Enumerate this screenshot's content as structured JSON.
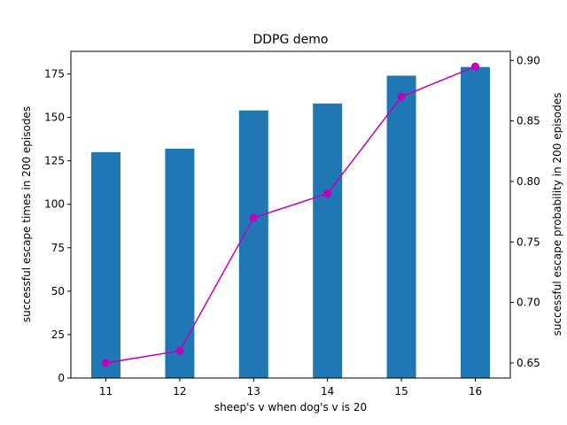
{
  "chart_data": {
    "type": "bar",
    "title": "DDPG demo",
    "xlabel": "sheep's v when dog's v is 20",
    "ylabel": "successful escape times in 200 episodes",
    "y2label": "successful escape probability in 200 episodes",
    "categories": [
      "11",
      "12",
      "13",
      "14",
      "15",
      "16"
    ],
    "series": [
      {
        "type": "bar",
        "axis": "left",
        "values": [
          130,
          132,
          154,
          158,
          174,
          179
        ],
        "color": "#1f77b4"
      },
      {
        "type": "line",
        "axis": "right",
        "values": [
          0.65,
          0.66,
          0.77,
          0.79,
          0.87,
          0.895
        ],
        "color": "#bf00bf",
        "marker": "circle"
      }
    ],
    "ylim": [
      0,
      188
    ],
    "y2lim": [
      0.6375,
      0.9075
    ],
    "yticks": [
      "0",
      "25",
      "50",
      "75",
      "100",
      "125",
      "150",
      "175"
    ],
    "y2ticks": [
      "0.65",
      "0.70",
      "0.75",
      "0.80",
      "0.85",
      "0.90"
    ],
    "grid": false
  }
}
